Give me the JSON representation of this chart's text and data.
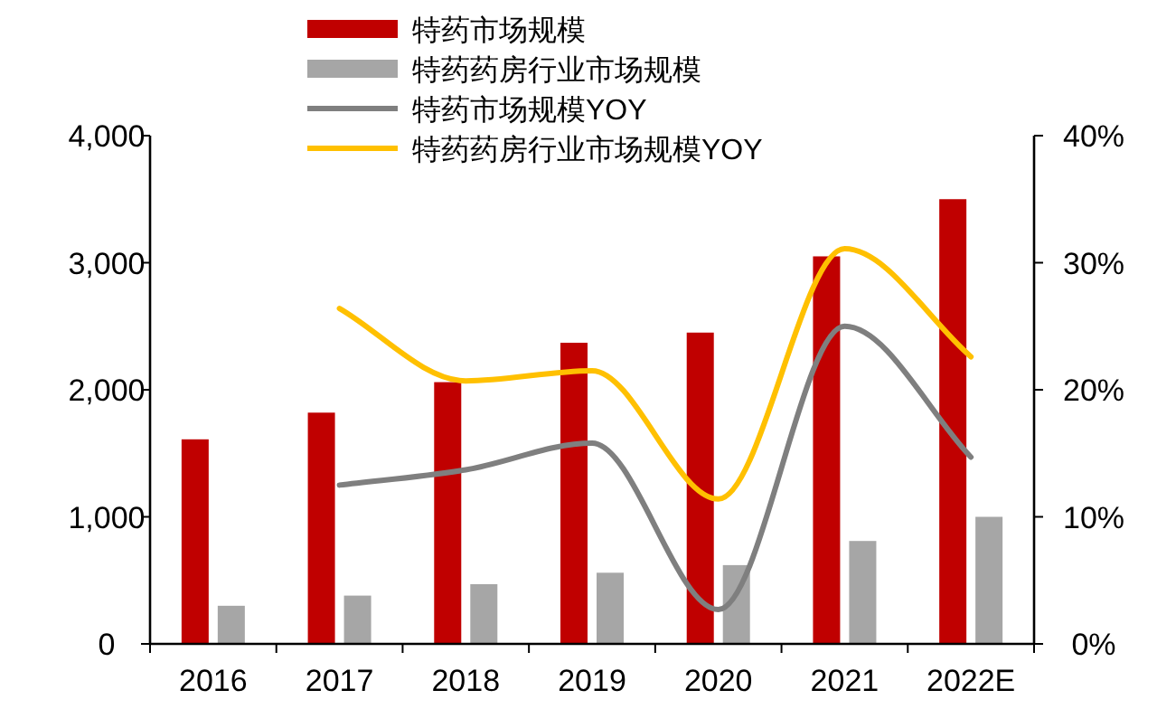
{
  "chart_data": {
    "type": "bar",
    "categories": [
      "2016",
      "2017",
      "2018",
      "2019",
      "2020",
      "2021",
      "2022E"
    ],
    "series": [
      {
        "name": "特药市场规模",
        "color": "#c00000",
        "values": [
          1610,
          1820,
          2060,
          2370,
          2450,
          3050,
          3500
        ]
      },
      {
        "name": "特药药房行业市场规模",
        "color": "#a6a6a6",
        "values": [
          300,
          380,
          470,
          560,
          620,
          810,
          1000
        ]
      },
      {
        "name": "特药市场规模YOY",
        "type": "line",
        "axis": "y2",
        "color": "#7f7f7f",
        "values": [
          null,
          12.5,
          13.7,
          15.8,
          2.7,
          25.0,
          14.7
        ]
      },
      {
        "name": "特药药房行业市场规模YOY",
        "type": "line",
        "axis": "y2",
        "color": "#ffc000",
        "values": [
          null,
          26.4,
          20.7,
          21.5,
          11.4,
          31.1,
          22.6
        ]
      }
    ],
    "ylim": [
      0,
      4000
    ],
    "yticks": [
      {
        "value": 0,
        "label": "0"
      },
      {
        "value": 1000,
        "label": "1,000"
      },
      {
        "value": 2000,
        "label": "2,000"
      },
      {
        "value": 3000,
        "label": "3,000"
      },
      {
        "value": 4000,
        "label": "4,000"
      }
    ],
    "y2lim": [
      0,
      40
    ],
    "y2ticks": [
      {
        "value": 0,
        "label": "0%"
      },
      {
        "value": 10,
        "label": "10%"
      },
      {
        "value": 20,
        "label": "20%"
      },
      {
        "value": 30,
        "label": "30%"
      },
      {
        "value": 40,
        "label": "40%"
      }
    ],
    "legend": "top",
    "grid": false
  }
}
